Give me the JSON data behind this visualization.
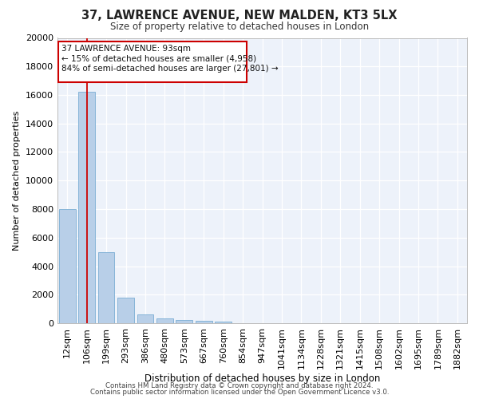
{
  "title1": "37, LAWRENCE AVENUE, NEW MALDEN, KT3 5LX",
  "title2": "Size of property relative to detached houses in London",
  "xlabel": "Distribution of detached houses by size in London",
  "ylabel": "Number of detached properties",
  "categories": [
    "12sqm",
    "106sqm",
    "199sqm",
    "293sqm",
    "386sqm",
    "480sqm",
    "573sqm",
    "667sqm",
    "760sqm",
    "854sqm",
    "947sqm",
    "1041sqm",
    "1134sqm",
    "1228sqm",
    "1321sqm",
    "1415sqm",
    "1508sqm",
    "1602sqm",
    "1695sqm",
    "1789sqm",
    "1882sqm"
  ],
  "values": [
    8000,
    16200,
    5000,
    1800,
    600,
    350,
    220,
    160,
    100,
    0,
    0,
    0,
    0,
    0,
    0,
    0,
    0,
    0,
    0,
    0,
    0
  ],
  "bar_color": "#b8cfe8",
  "bar_edge_color": "#7aadd4",
  "vline_x": 1.0,
  "vline_color": "#cc0000",
  "box_color": "#cc0000",
  "footnote1": "Contains HM Land Registry data © Crown copyright and database right 2024.",
  "footnote2": "Contains public sector information licensed under the Open Government Licence v3.0.",
  "ylim": [
    0,
    20000
  ],
  "yticks": [
    0,
    2000,
    4000,
    6000,
    8000,
    10000,
    12000,
    14000,
    16000,
    18000,
    20000
  ],
  "plot_bg_color": "#edf2fa",
  "grid_color": "#ffffff",
  "ann_line1": "37 LAWRENCE AVENUE: 93sqm",
  "ann_line2": "← 15% of detached houses are smaller (4,958)",
  "ann_line3": "84% of semi-detached houses are larger (27,801) →"
}
